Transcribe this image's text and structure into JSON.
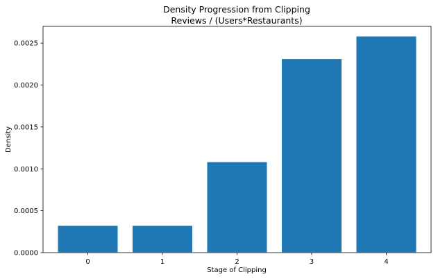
{
  "chart_data": {
    "type": "bar",
    "title": "Density Progression from Clipping",
    "subtitle": "Reviews / (Users*Restaurants)",
    "xlabel": "Stage of Clipping",
    "ylabel": "Density",
    "categories": [
      "0",
      "1",
      "2",
      "3",
      "4"
    ],
    "values": [
      0.00032,
      0.00032,
      0.00108,
      0.00231,
      0.00258
    ],
    "ylim": [
      0,
      0.0027
    ],
    "yticks": [
      "0.0000",
      "0.0005",
      "0.0010",
      "0.0015",
      "0.0020",
      "0.0025"
    ],
    "bar_color": "#1f77b4",
    "grid": false,
    "legend": "none"
  }
}
